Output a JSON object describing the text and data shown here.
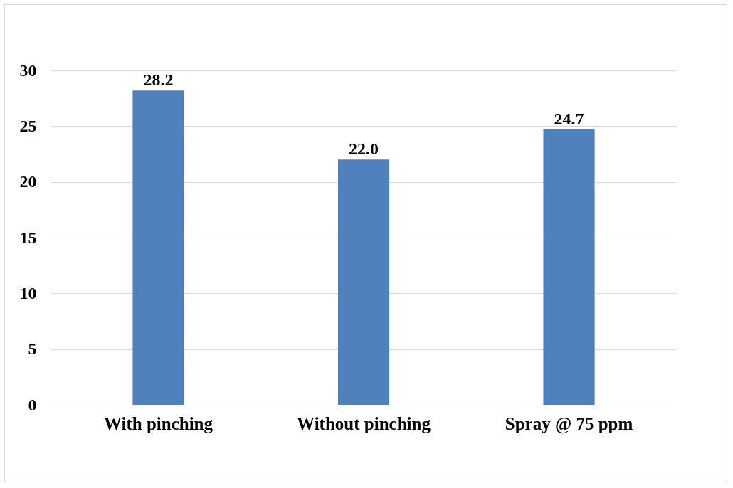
{
  "chart_data": {
    "type": "bar",
    "categories": [
      "With pinching",
      "Without pinching",
      "Spray @ 75 ppm"
    ],
    "values": [
      28.2,
      22.0,
      24.7
    ],
    "value_labels": [
      "28.2",
      "22.0",
      "24.7"
    ],
    "color": "#4f81bd",
    "ylim": [
      0,
      30
    ],
    "yticks": [
      0,
      5,
      10,
      15,
      20,
      25,
      30
    ],
    "grid": "y"
  }
}
